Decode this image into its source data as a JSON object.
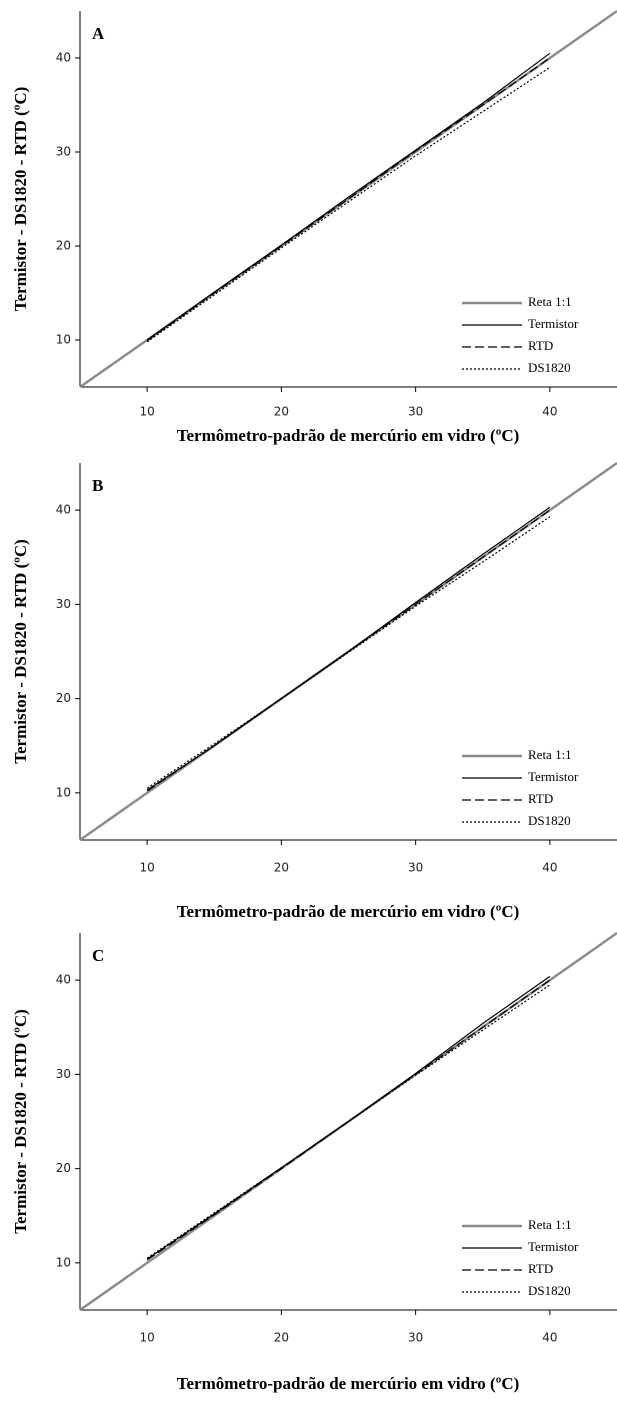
{
  "chart_data": [
    {
      "type": "line",
      "label": "A",
      "xlabel": "Termômetro-padrão de mercúrio em vidro (ºC)",
      "ylabel": "Termistor - DS1820 - RTD (ºC)",
      "x": [
        5,
        10,
        15,
        20,
        25,
        30,
        35,
        40,
        45
      ],
      "xlim": [
        5,
        45
      ],
      "xticks": [
        10,
        20,
        30,
        40
      ],
      "ylim": [
        5,
        45
      ],
      "yticks": [
        10,
        20,
        30,
        40
      ],
      "legend": "lower right",
      "series": [
        {
          "name": "Reta 1:1",
          "color": "#8c8c8c",
          "dash": "solid",
          "values": [
            5,
            10,
            15,
            20,
            25,
            30,
            35,
            40,
            45
          ]
        },
        {
          "name": "Termistor",
          "color": "#000000",
          "dash": "solid",
          "values": [
            null,
            10,
            15.1,
            20.1,
            25.2,
            30.2,
            35.2,
            40.5,
            null
          ]
        },
        {
          "name": "RTD",
          "color": "#000000",
          "dash": "dashed",
          "values": [
            null,
            9.9,
            15,
            20,
            25,
            30.1,
            35,
            40,
            null
          ]
        },
        {
          "name": "DS1820",
          "color": "#000000",
          "dash": "dotted",
          "values": [
            null,
            9.8,
            14.8,
            19.8,
            24.7,
            29.6,
            34.3,
            39,
            null
          ]
        }
      ]
    },
    {
      "type": "line",
      "label": "B",
      "xlabel": "Termômetro-padrão de mercúrio em vidro (ºC)",
      "ylabel": "Termistor - DS1820 - RTD (ºC)",
      "x": [
        5,
        10,
        15,
        20,
        25,
        30,
        35,
        40,
        45
      ],
      "xlim": [
        5,
        45
      ],
      "xticks": [
        10,
        20,
        30,
        40
      ],
      "ylim": [
        5,
        45
      ],
      "yticks": [
        10,
        20,
        30,
        40
      ],
      "legend": "lower right",
      "series": [
        {
          "name": "Reta 1:1",
          "color": "#8c8c8c",
          "dash": "solid",
          "values": [
            5,
            10,
            15,
            20,
            25,
            30,
            35,
            40,
            45
          ]
        },
        {
          "name": "Termistor",
          "color": "#000000",
          "dash": "solid",
          "values": [
            null,
            10.3,
            15,
            20,
            25,
            30.2,
            35.3,
            40.3,
            null
          ]
        },
        {
          "name": "RTD",
          "color": "#000000",
          "dash": "dashed",
          "values": [
            null,
            10.2,
            15,
            20,
            25,
            30,
            35,
            40,
            null
          ]
        },
        {
          "name": "DS1820",
          "color": "#000000",
          "dash": "dotted",
          "values": [
            null,
            10.5,
            15.2,
            20,
            24.9,
            29.8,
            34.5,
            39.3,
            null
          ]
        }
      ]
    },
    {
      "type": "line",
      "label": "C",
      "xlabel": "Termômetro-padrão de mercúrio em vidro (ºC)",
      "ylabel": "Termistor - DS1820 - RTD (ºC)",
      "x": [
        5,
        10,
        15,
        20,
        25,
        30,
        35,
        40,
        45
      ],
      "xlim": [
        5,
        45
      ],
      "xticks": [
        10,
        20,
        30,
        40
      ],
      "ylim": [
        5,
        45
      ],
      "yticks": [
        10,
        20,
        30,
        40
      ],
      "legend": "lower right",
      "series": [
        {
          "name": "Reta 1:1",
          "color": "#8c8c8c",
          "dash": "solid",
          "values": [
            5,
            10,
            15,
            20,
            25,
            30,
            35,
            40,
            45
          ]
        },
        {
          "name": "Termistor",
          "color": "#000000",
          "dash": "solid",
          "values": [
            null,
            10.4,
            15.2,
            20.1,
            25,
            30.1,
            35.4,
            40.4,
            null
          ]
        },
        {
          "name": "RTD",
          "color": "#000000",
          "dash": "dashed",
          "values": [
            null,
            10.3,
            15.1,
            20,
            25,
            30,
            35,
            40,
            null
          ]
        },
        {
          "name": "DS1820",
          "color": "#000000",
          "dash": "dotted",
          "values": [
            null,
            10.5,
            15.3,
            20.1,
            25,
            29.9,
            34.7,
            39.5,
            null
          ]
        }
      ]
    }
  ]
}
